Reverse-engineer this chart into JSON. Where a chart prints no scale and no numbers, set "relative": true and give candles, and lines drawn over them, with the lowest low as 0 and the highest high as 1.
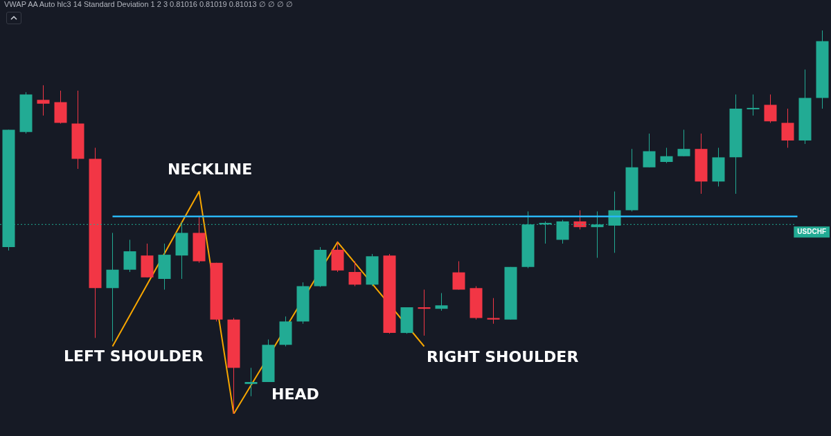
{
  "chart_data": {
    "type": "candlestick",
    "title": "VWAP AA Auto hlc3 14 Standard Deviation 1 2 3 0.81016 0.81019 0.81013 ∅ ∅ ∅ ∅",
    "relative": true,
    "categories": [
      null,
      null,
      null,
      null,
      null,
      null,
      null,
      null,
      null,
      null,
      null,
      null,
      null,
      null,
      null,
      null,
      null,
      null,
      null,
      null,
      null,
      null,
      null,
      null,
      null,
      null,
      null,
      null,
      null,
      null,
      null,
      null,
      null,
      null,
      null,
      null,
      null,
      null,
      null,
      null,
      null,
      null,
      null,
      null,
      null,
      null,
      null,
      null
    ],
    "ohlc": [
      [
        0.435,
        0.741,
        0.426,
        0.741
      ],
      [
        0.735,
        0.839,
        0.731,
        0.833
      ],
      [
        0.819,
        0.857,
        0.778,
        0.809
      ],
      [
        0.813,
        0.843,
        0.757,
        0.759
      ],
      [
        0.757,
        0.843,
        0.639,
        0.665
      ],
      [
        0.665,
        0.694,
        0.198,
        0.328
      ],
      [
        0.328,
        0.472,
        0.189,
        0.376
      ],
      [
        0.376,
        0.454,
        0.37,
        0.424
      ],
      [
        0.413,
        0.444,
        0.356,
        0.356
      ],
      [
        0.352,
        0.444,
        0.324,
        0.415
      ],
      [
        0.413,
        0.5,
        0.352,
        0.472
      ],
      [
        0.472,
        0.513,
        0.394,
        0.398
      ],
      [
        0.394,
        0.394,
        0.241,
        0.246
      ],
      [
        0.246,
        0.25,
        0,
        0.12
      ],
      [
        0.078,
        0.12,
        0.046,
        0.083
      ],
      [
        0.083,
        0.194,
        0.083,
        0.18
      ],
      [
        0.18,
        0.254,
        0.176,
        0.241
      ],
      [
        0.241,
        0.343,
        0.235,
        0.333
      ],
      [
        0.333,
        0.435,
        0.331,
        0.428
      ],
      [
        0.428,
        0.448,
        0.37,
        0.374
      ],
      [
        0.37,
        0.398,
        0.333,
        0.337
      ],
      [
        0.337,
        0.417,
        0.333,
        0.411
      ],
      [
        0.413,
        0.417,
        0.209,
        0.211
      ],
      [
        0.211,
        0.278,
        0.209,
        0.278
      ],
      [
        0.278,
        0.324,
        0.204,
        0.274
      ],
      [
        0.274,
        0.315,
        0.269,
        0.283
      ],
      [
        0.369,
        0.398,
        0.324,
        0.324
      ],
      [
        0.328,
        0.333,
        0.246,
        0.25
      ],
      [
        0.25,
        0.302,
        0.235,
        0.246
      ],
      [
        0.246,
        0.383,
        0.246,
        0.383
      ],
      [
        0.383,
        0.528,
        0.38,
        0.494
      ],
      [
        0.494,
        0.502,
        0.444,
        0.498
      ],
      [
        0.454,
        0.506,
        0.444,
        0.502
      ],
      [
        0.502,
        0.531,
        0.481,
        0.487
      ],
      [
        0.487,
        0.528,
        0.407,
        0.494
      ],
      [
        0.491,
        0.58,
        0.42,
        0.531
      ],
      [
        0.531,
        0.691,
        0.528,
        0.643
      ],
      [
        0.643,
        0.731,
        0.643,
        0.685
      ],
      [
        0.657,
        0.694,
        0.654,
        0.672
      ],
      [
        0.672,
        0.741,
        0.672,
        0.691
      ],
      [
        0.691,
        0.731,
        0.574,
        0.606
      ],
      [
        0.606,
        0.694,
        0.593,
        0.669
      ],
      [
        0.669,
        0.833,
        0.574,
        0.796
      ],
      [
        0.796,
        0.833,
        0.778,
        0.798
      ],
      [
        0.806,
        0.833,
        0.759,
        0.763
      ],
      [
        0.759,
        0.796,
        0.694,
        0.713
      ],
      [
        0.713,
        0.898,
        0.704,
        0.824
      ],
      [
        0.824,
        1,
        0.796,
        0.972
      ]
    ],
    "colors": [
      "#22ab94",
      "#22ab94",
      "#f23645",
      "#f23645",
      "#f23645",
      "#f23645",
      "#22ab94",
      "#22ab94",
      "#f23645",
      "#22ab94",
      "#22ab94",
      "#f23645",
      "#f23645",
      "#f23645",
      "#22ab94",
      "#22ab94",
      "#22ab94",
      "#22ab94",
      "#22ab94",
      "#f23645",
      "#f23645",
      "#22ab94",
      "#f23645",
      "#22ab94",
      "#f23645",
      "#22ab94",
      "#f23645",
      "#f23645",
      "#f23645",
      "#22ab94",
      "#22ab94",
      "#22ab94",
      "#22ab94",
      "#f23645",
      "#22ab94",
      "#22ab94",
      "#22ab94",
      "#22ab94",
      "#22ab94",
      "#22ab94",
      "#f23645",
      "#22ab94",
      "#22ab94",
      "#22ab94",
      "#f23645",
      "#f23645",
      "#22ab94",
      "#22ab94"
    ],
    "series": [
      {
        "type": "line",
        "color": "#f7a600",
        "values": [
          null,
          null,
          null,
          null,
          null,
          null,
          0.176,
          null,
          null,
          null,
          null,
          0.58,
          null,
          0,
          null,
          null,
          null,
          null,
          null,
          0.448,
          null,
          null,
          null,
          null,
          0.176,
          null,
          null,
          null,
          null,
          null,
          null,
          null,
          null,
          null,
          null,
          null,
          null,
          null,
          null,
          null,
          null,
          null,
          null,
          null,
          null,
          null,
          null,
          null
        ]
      }
    ],
    "marker": "none",
    "ref_lines": [
      {
        "axis": "y",
        "value": 0.515,
        "label": "NECKLINE",
        "color": "#29b6f6",
        "line_style": "solid"
      },
      {
        "axis": "y",
        "value": 0.494,
        "label": "USDCHF",
        "color": "#22ab94",
        "line_style": "dotted"
      }
    ],
    "annotations": [
      "LEFT SHOULDER",
      "HEAD",
      "RIGHT SHOULDER"
    ],
    "legend": false
  }
}
